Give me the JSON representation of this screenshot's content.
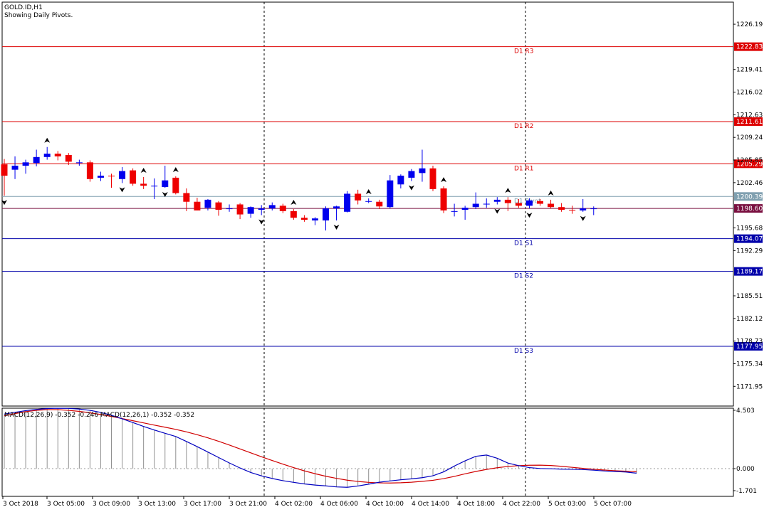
{
  "header": {
    "symbol_line": "GOLD.ID,H1",
    "indicator_line": "Showing Daily Pivots."
  },
  "macd": {
    "label": "MACD(12,26,9) -0.352 -0.246 MACD(12,26,1) -0.352 -0.352",
    "ylim": [
      -1.701,
      4.503
    ],
    "ticks": [
      "4.503",
      "0.000",
      "-1.701"
    ]
  },
  "chart_data": {
    "type": "candlestick",
    "title": "GOLD.ID,H1",
    "subtitle": "Showing Daily Pivots.",
    "ylim": [
      1169.0,
      1229.5
    ],
    "yticks": [
      "1226.19",
      "1219.41",
      "1216.02",
      "1212.63",
      "1209.24",
      "1205.85",
      "1202.46",
      "1195.68",
      "1192.29",
      "1185.51",
      "1182.12",
      "1178.73",
      "1175.34",
      "1171.95"
    ],
    "xticks": [
      "3 Oct 2018",
      "3 Oct 05:00",
      "3 Oct 09:00",
      "3 Oct 13:00",
      "3 Oct 17:00",
      "3 Oct 21:00",
      "4 Oct 02:00",
      "4 Oct 06:00",
      "4 Oct 10:00",
      "4 Oct 14:00",
      "4 Oct 18:00",
      "4 Oct 22:00",
      "5 Oct 03:00",
      "5 Oct 07:00"
    ],
    "pivots": [
      {
        "label": "D1 R3",
        "value": 1222.83,
        "tag": "1222.83",
        "color": "#dd0000"
      },
      {
        "label": "D1 R2",
        "value": 1211.61,
        "tag": "1211.61",
        "color": "#dd0000"
      },
      {
        "label": "D1 R1",
        "value": 1205.29,
        "tag": "1205.29",
        "color": "#dd0000"
      },
      {
        "label": "D1 Pivot",
        "value": 1200.39,
        "tag": "1200.39",
        "color": "#80a0b0"
      },
      {
        "label": "D1 S1",
        "value": 1194.07,
        "tag": "1194.07",
        "color": "#0000aa"
      },
      {
        "label": "D1 S2",
        "value": 1189.17,
        "tag": "1189.17",
        "color": "#0000aa"
      },
      {
        "label": "D1 S3",
        "value": 1177.95,
        "tag": "1177.95",
        "color": "#0000aa"
      }
    ],
    "current_price": {
      "value": 1198.6,
      "tag": "1198.60",
      "color": "#7a1040"
    },
    "candles": [
      [
        1205.2,
        1206.0,
        1200.5,
        1203.5
      ],
      [
        1204.4,
        1206.4,
        1203.0,
        1205.0
      ],
      [
        1205.0,
        1205.9,
        1203.8,
        1205.5
      ],
      [
        1205.4,
        1207.4,
        1204.9,
        1206.3
      ],
      [
        1206.3,
        1207.8,
        1205.9,
        1206.8
      ],
      [
        1206.8,
        1207.2,
        1205.8,
        1206.4
      ],
      [
        1206.6,
        1206.9,
        1205.1,
        1205.6
      ],
      [
        1205.4,
        1205.9,
        1205.0,
        1205.5
      ],
      [
        1205.5,
        1205.8,
        1202.6,
        1203.0
      ],
      [
        1203.2,
        1204.1,
        1202.7,
        1203.5
      ],
      [
        1203.5,
        1203.8,
        1201.7,
        1203.4
      ],
      [
        1203.0,
        1204.8,
        1202.4,
        1204.2
      ],
      [
        1204.3,
        1204.6,
        1202.0,
        1202.3
      ],
      [
        1202.3,
        1203.3,
        1201.5,
        1202.0
      ],
      [
        1202.0,
        1203.1,
        1200.0,
        1202.0
      ],
      [
        1201.8,
        1205.0,
        1201.7,
        1202.8
      ],
      [
        1203.2,
        1203.4,
        1200.7,
        1200.9
      ],
      [
        1200.9,
        1201.6,
        1198.2,
        1199.6
      ],
      [
        1199.6,
        1200.2,
        1198.3,
        1198.3
      ],
      [
        1198.7,
        1200.0,
        1198.3,
        1199.9
      ],
      [
        1199.5,
        1199.7,
        1197.5,
        1198.4
      ],
      [
        1198.5,
        1199.2,
        1198.1,
        1198.6
      ],
      [
        1199.2,
        1199.4,
        1197.0,
        1197.7
      ],
      [
        1197.8,
        1198.9,
        1197.2,
        1198.8
      ],
      [
        1198.4,
        1199.1,
        1197.6,
        1198.6
      ],
      [
        1198.6,
        1199.5,
        1198.3,
        1199.1
      ],
      [
        1199.0,
        1199.3,
        1197.9,
        1198.2
      ],
      [
        1198.2,
        1198.5,
        1196.9,
        1197.2
      ],
      [
        1197.2,
        1197.6,
        1196.6,
        1196.9
      ],
      [
        1196.8,
        1197.3,
        1196.1,
        1197.1
      ],
      [
        1196.8,
        1198.9,
        1195.3,
        1198.6
      ],
      [
        1198.6,
        1199.0,
        1196.8,
        1198.9
      ],
      [
        1198.1,
        1201.2,
        1198.0,
        1200.8
      ],
      [
        1200.8,
        1201.4,
        1199.2,
        1199.8
      ],
      [
        1199.7,
        1200.1,
        1199.4,
        1199.7
      ],
      [
        1199.6,
        1199.9,
        1198.5,
        1198.9
      ],
      [
        1198.8,
        1203.6,
        1198.6,
        1202.8
      ],
      [
        1202.2,
        1203.7,
        1201.6,
        1203.5
      ],
      [
        1203.2,
        1204.5,
        1202.7,
        1204.2
      ],
      [
        1203.9,
        1207.4,
        1202.6,
        1204.6
      ],
      [
        1204.6,
        1205.0,
        1201.2,
        1201.5
      ],
      [
        1201.6,
        1201.9,
        1197.9,
        1198.3
      ],
      [
        1198.1,
        1199.3,
        1197.4,
        1198.2
      ],
      [
        1198.4,
        1199.0,
        1196.9,
        1198.7
      ],
      [
        1198.8,
        1201.0,
        1198.5,
        1199.3
      ],
      [
        1199.3,
        1200.1,
        1198.7,
        1199.3
      ],
      [
        1199.6,
        1200.3,
        1199.2,
        1199.9
      ],
      [
        1199.9,
        1200.3,
        1198.2,
        1199.4
      ],
      [
        1199.4,
        1200.0,
        1198.7,
        1199.0
      ],
      [
        1199.0,
        1200.1,
        1198.6,
        1199.8
      ],
      [
        1199.7,
        1200.0,
        1199.0,
        1199.3
      ],
      [
        1199.3,
        1199.9,
        1198.6,
        1198.8
      ],
      [
        1198.8,
        1199.4,
        1198.1,
        1198.4
      ],
      [
        1198.4,
        1199.0,
        1197.8,
        1198.3
      ],
      [
        1198.3,
        1200.0,
        1198.1,
        1198.6
      ],
      [
        1198.5,
        1198.9,
        1197.6,
        1198.6
      ]
    ],
    "fractals_up": [
      4,
      13,
      16,
      27,
      34,
      41,
      47,
      51
    ],
    "fractals_down": [
      0,
      11,
      15,
      24,
      31,
      38,
      46,
      49,
      54
    ],
    "macd_signal": [
      4.08,
      4.25,
      4.4,
      4.5,
      4.55,
      4.55,
      4.5,
      4.42,
      4.31,
      4.18,
      4.03,
      3.87,
      3.7,
      3.53,
      3.36,
      3.2,
      3.03,
      2.84,
      2.62,
      2.38,
      2.11,
      1.82,
      1.52,
      1.22,
      0.92,
      0.63,
      0.35,
      0.08,
      -0.17,
      -0.39,
      -0.59,
      -0.75,
      -0.89,
      -0.99,
      -1.06,
      -1.1,
      -1.11,
      -1.09,
      -1.05,
      -0.98,
      -0.9,
      -0.77,
      -0.6,
      -0.4,
      -0.22,
      -0.06,
      0.07,
      0.17,
      0.23,
      0.26,
      0.27,
      0.24,
      0.18,
      0.1,
      0.02,
      -0.05,
      -0.11,
      -0.16,
      -0.2,
      -0.24
    ],
    "macd_main": [
      4.21,
      4.35,
      4.48,
      4.57,
      4.64,
      4.66,
      4.65,
      4.6,
      4.5,
      4.34,
      4.12,
      3.85,
      3.56,
      3.26,
      2.98,
      2.73,
      2.48,
      2.1,
      1.7,
      1.28,
      0.86,
      0.44,
      0.05,
      -0.3,
      -0.56,
      -0.76,
      -0.93,
      -1.06,
      -1.18,
      -1.27,
      -1.33,
      -1.41,
      -1.44,
      -1.34,
      -1.2,
      -1.05,
      -0.95,
      -0.86,
      -0.79,
      -0.7,
      -0.55,
      -0.25,
      0.2,
      0.6,
      0.95,
      1.05,
      0.8,
      0.43,
      0.23,
      0.08,
      0.01,
      -0.01,
      -0.04,
      -0.05,
      -0.07,
      -0.12,
      -0.18,
      -0.22,
      -0.26,
      -0.35
    ]
  }
}
